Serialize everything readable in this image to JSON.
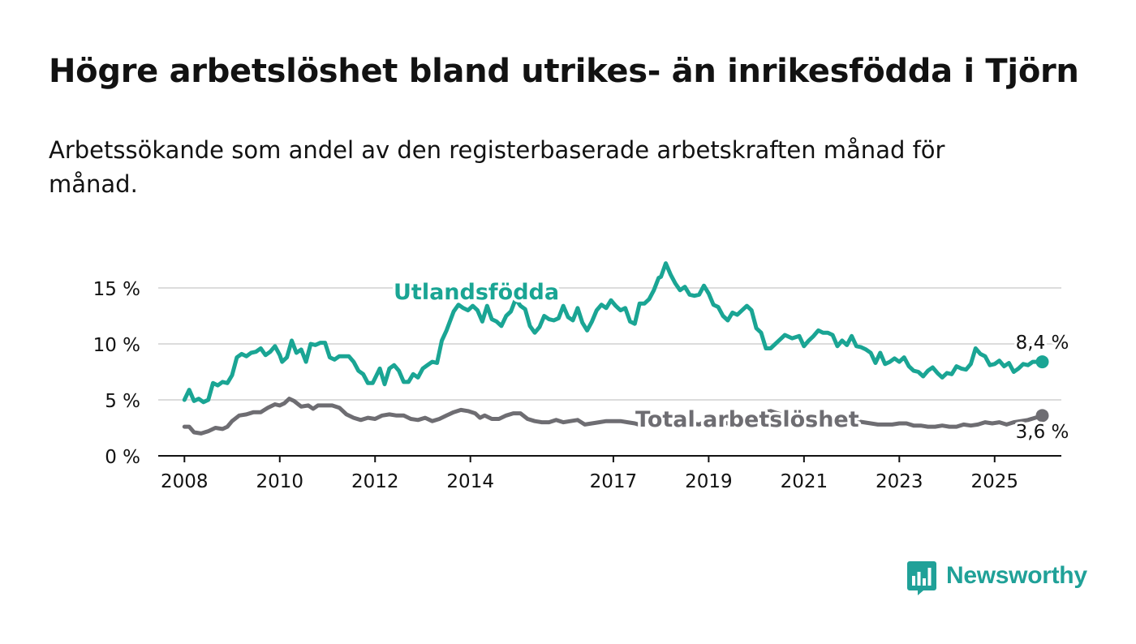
{
  "title": "Högre arbetslöshet bland utrikes- än inrikesfödda i Tjörn",
  "subtitle": "Arbetssökande som andel av den registerbaserade arbetskraften månad för månad.",
  "brand": {
    "name": "Newsworthy",
    "color": "#20a198",
    "icon": "newsworthy-logo-icon"
  },
  "colors": {
    "foreign": "#1aa594",
    "total": "#6e6d72",
    "grid": "#dcdcdc",
    "axis": "#121212"
  },
  "chart_data": {
    "type": "line",
    "y_ticks": [
      "0 %",
      "5 %",
      "10 %",
      "15 %"
    ],
    "x_ticks": [
      "2008",
      "2010",
      "2012",
      "2014",
      "2017",
      "2019",
      "2021",
      "2023",
      "2025"
    ],
    "x_tick_values": [
      2008,
      2010,
      2012,
      2014,
      2017,
      2019,
      2021,
      2023,
      2025
    ],
    "xlim": [
      2007.45,
      2026.4
    ],
    "ylim": [
      0,
      15
    ],
    "grid": "horizontal",
    "series": [
      {
        "name": "Utlandsfödda",
        "end_label": "8,4 %",
        "points": [
          [
            2008.0,
            5.0
          ],
          [
            2008.1,
            5.9
          ],
          [
            2008.2,
            4.9
          ],
          [
            2008.3,
            5.1
          ],
          [
            2008.4,
            4.8
          ],
          [
            2008.5,
            5.0
          ],
          [
            2008.6,
            6.5
          ],
          [
            2008.7,
            6.3
          ],
          [
            2008.8,
            6.6
          ],
          [
            2008.9,
            6.5
          ],
          [
            2009.0,
            7.2
          ],
          [
            2009.1,
            8.8
          ],
          [
            2009.2,
            9.1
          ],
          [
            2009.3,
            8.9
          ],
          [
            2009.4,
            9.2
          ],
          [
            2009.5,
            9.3
          ],
          [
            2009.6,
            9.6
          ],
          [
            2009.7,
            9.0
          ],
          [
            2009.8,
            9.3
          ],
          [
            2009.9,
            9.8
          ],
          [
            2010.0,
            9.0
          ],
          [
            2010.05,
            8.4
          ],
          [
            2010.15,
            8.8
          ],
          [
            2010.25,
            10.3
          ],
          [
            2010.35,
            9.2
          ],
          [
            2010.45,
            9.5
          ],
          [
            2010.55,
            8.4
          ],
          [
            2010.65,
            10.0
          ],
          [
            2010.75,
            9.9
          ],
          [
            2010.85,
            10.1
          ],
          [
            2010.95,
            10.1
          ],
          [
            2011.05,
            8.8
          ],
          [
            2011.15,
            8.6
          ],
          [
            2011.25,
            8.9
          ],
          [
            2011.45,
            8.9
          ],
          [
            2011.55,
            8.4
          ],
          [
            2011.65,
            7.6
          ],
          [
            2011.75,
            7.3
          ],
          [
            2011.85,
            6.5
          ],
          [
            2011.95,
            6.5
          ],
          [
            2012.1,
            7.8
          ],
          [
            2012.2,
            6.4
          ],
          [
            2012.3,
            7.8
          ],
          [
            2012.4,
            8.1
          ],
          [
            2012.5,
            7.6
          ],
          [
            2012.6,
            6.6
          ],
          [
            2012.7,
            6.6
          ],
          [
            2012.8,
            7.3
          ],
          [
            2012.9,
            7.0
          ],
          [
            2013.0,
            7.8
          ],
          [
            2013.1,
            8.1
          ],
          [
            2013.2,
            8.4
          ],
          [
            2013.3,
            8.3
          ],
          [
            2013.4,
            10.3
          ],
          [
            2013.5,
            11.2
          ],
          [
            2013.65,
            12.9
          ],
          [
            2013.75,
            13.5
          ],
          [
            2013.85,
            13.2
          ],
          [
            2013.95,
            13.0
          ],
          [
            2014.05,
            13.4
          ],
          [
            2014.15,
            13.0
          ],
          [
            2014.25,
            12.0
          ],
          [
            2014.35,
            13.4
          ],
          [
            2014.45,
            12.2
          ],
          [
            2014.55,
            12.0
          ],
          [
            2014.65,
            11.6
          ],
          [
            2014.75,
            12.5
          ],
          [
            2014.85,
            12.9
          ],
          [
            2014.95,
            14.0
          ],
          [
            2015.05,
            13.4
          ],
          [
            2015.15,
            13.1
          ],
          [
            2015.25,
            11.6
          ],
          [
            2015.35,
            11.0
          ],
          [
            2015.45,
            11.5
          ],
          [
            2015.55,
            12.5
          ],
          [
            2015.65,
            12.2
          ],
          [
            2015.75,
            12.1
          ],
          [
            2015.85,
            12.3
          ],
          [
            2015.95,
            13.4
          ],
          [
            2016.05,
            12.4
          ],
          [
            2016.15,
            12.1
          ],
          [
            2016.25,
            13.2
          ],
          [
            2016.35,
            11.9
          ],
          [
            2016.45,
            11.2
          ],
          [
            2016.55,
            12.0
          ],
          [
            2016.65,
            13.0
          ],
          [
            2016.75,
            13.5
          ],
          [
            2016.85,
            13.2
          ],
          [
            2016.95,
            13.9
          ],
          [
            2017.05,
            13.4
          ],
          [
            2017.15,
            13.0
          ],
          [
            2017.25,
            13.2
          ],
          [
            2017.35,
            12.0
          ],
          [
            2017.45,
            11.8
          ],
          [
            2017.55,
            13.6
          ],
          [
            2017.65,
            13.6
          ],
          [
            2017.75,
            14.0
          ],
          [
            2017.85,
            14.8
          ],
          [
            2017.95,
            15.9
          ],
          [
            2018.0,
            16.0
          ],
          [
            2018.1,
            17.2
          ],
          [
            2018.2,
            16.2
          ],
          [
            2018.3,
            15.4
          ],
          [
            2018.4,
            14.8
          ],
          [
            2018.5,
            15.1
          ],
          [
            2018.6,
            14.4
          ],
          [
            2018.7,
            14.3
          ],
          [
            2018.8,
            14.4
          ],
          [
            2018.9,
            15.2
          ],
          [
            2019.0,
            14.5
          ],
          [
            2019.1,
            13.5
          ],
          [
            2019.2,
            13.3
          ],
          [
            2019.3,
            12.5
          ],
          [
            2019.4,
            12.1
          ],
          [
            2019.5,
            12.8
          ],
          [
            2019.6,
            12.6
          ],
          [
            2019.7,
            13.0
          ],
          [
            2019.8,
            13.4
          ],
          [
            2019.9,
            13.0
          ],
          [
            2020.0,
            11.4
          ],
          [
            2020.1,
            11.0
          ],
          [
            2020.2,
            9.6
          ],
          [
            2020.3,
            9.6
          ],
          [
            2020.45,
            10.2
          ],
          [
            2020.6,
            10.8
          ],
          [
            2020.75,
            10.5
          ],
          [
            2020.9,
            10.7
          ],
          [
            2021.0,
            9.8
          ],
          [
            2021.1,
            10.3
          ],
          [
            2021.2,
            10.7
          ],
          [
            2021.3,
            11.2
          ],
          [
            2021.4,
            11.0
          ],
          [
            2021.5,
            11.0
          ],
          [
            2021.6,
            10.8
          ],
          [
            2021.7,
            9.8
          ],
          [
            2021.8,
            10.3
          ],
          [
            2021.9,
            9.9
          ],
          [
            2022.0,
            10.7
          ],
          [
            2022.1,
            9.8
          ],
          [
            2022.2,
            9.7
          ],
          [
            2022.3,
            9.5
          ],
          [
            2022.4,
            9.2
          ],
          [
            2022.5,
            8.3
          ],
          [
            2022.6,
            9.2
          ],
          [
            2022.7,
            8.2
          ],
          [
            2022.8,
            8.4
          ],
          [
            2022.9,
            8.7
          ],
          [
            2023.0,
            8.4
          ],
          [
            2023.1,
            8.8
          ],
          [
            2023.2,
            8.0
          ],
          [
            2023.3,
            7.6
          ],
          [
            2023.4,
            7.5
          ],
          [
            2023.5,
            7.1
          ],
          [
            2023.6,
            7.6
          ],
          [
            2023.7,
            7.9
          ],
          [
            2023.8,
            7.4
          ],
          [
            2023.9,
            7.0
          ],
          [
            2024.0,
            7.4
          ],
          [
            2024.1,
            7.3
          ],
          [
            2024.2,
            8.0
          ],
          [
            2024.3,
            7.8
          ],
          [
            2024.4,
            7.7
          ],
          [
            2024.5,
            8.2
          ],
          [
            2024.6,
            9.6
          ],
          [
            2024.7,
            9.1
          ],
          [
            2024.8,
            8.9
          ],
          [
            2024.9,
            8.1
          ],
          [
            2025.0,
            8.2
          ],
          [
            2025.1,
            8.5
          ],
          [
            2025.2,
            8.0
          ],
          [
            2025.3,
            8.3
          ],
          [
            2025.4,
            7.5
          ],
          [
            2025.5,
            7.8
          ],
          [
            2025.6,
            8.2
          ],
          [
            2025.7,
            8.1
          ],
          [
            2025.8,
            8.4
          ],
          [
            2026.0,
            8.4
          ]
        ]
      },
      {
        "name": "Total arbetslöshet",
        "end_label": "3,6 %",
        "points": [
          [
            2008.0,
            2.6
          ],
          [
            2008.1,
            2.6
          ],
          [
            2008.2,
            2.1
          ],
          [
            2008.35,
            2.0
          ],
          [
            2008.5,
            2.2
          ],
          [
            2008.65,
            2.5
          ],
          [
            2008.8,
            2.4
          ],
          [
            2008.9,
            2.6
          ],
          [
            2009.0,
            3.1
          ],
          [
            2009.15,
            3.6
          ],
          [
            2009.3,
            3.7
          ],
          [
            2009.45,
            3.9
          ],
          [
            2009.6,
            3.9
          ],
          [
            2009.75,
            4.3
          ],
          [
            2009.9,
            4.6
          ],
          [
            2010.0,
            4.5
          ],
          [
            2010.1,
            4.7
          ],
          [
            2010.2,
            5.1
          ],
          [
            2010.3,
            4.9
          ],
          [
            2010.45,
            4.4
          ],
          [
            2010.6,
            4.5
          ],
          [
            2010.7,
            4.2
          ],
          [
            2010.8,
            4.5
          ],
          [
            2010.95,
            4.5
          ],
          [
            2011.1,
            4.5
          ],
          [
            2011.25,
            4.3
          ],
          [
            2011.4,
            3.7
          ],
          [
            2011.55,
            3.4
          ],
          [
            2011.7,
            3.2
          ],
          [
            2011.85,
            3.4
          ],
          [
            2012.0,
            3.3
          ],
          [
            2012.15,
            3.6
          ],
          [
            2012.3,
            3.7
          ],
          [
            2012.45,
            3.6
          ],
          [
            2012.6,
            3.6
          ],
          [
            2012.75,
            3.3
          ],
          [
            2012.9,
            3.2
          ],
          [
            2013.05,
            3.4
          ],
          [
            2013.2,
            3.1
          ],
          [
            2013.35,
            3.3
          ],
          [
            2013.5,
            3.6
          ],
          [
            2013.65,
            3.9
          ],
          [
            2013.8,
            4.1
          ],
          [
            2013.95,
            4.0
          ],
          [
            2014.1,
            3.8
          ],
          [
            2014.2,
            3.4
          ],
          [
            2014.3,
            3.6
          ],
          [
            2014.45,
            3.3
          ],
          [
            2014.6,
            3.3
          ],
          [
            2014.75,
            3.6
          ],
          [
            2014.9,
            3.8
          ],
          [
            2015.05,
            3.8
          ],
          [
            2015.2,
            3.3
          ],
          [
            2015.35,
            3.1
          ],
          [
            2015.5,
            3.0
          ],
          [
            2015.65,
            3.0
          ],
          [
            2015.8,
            3.2
          ],
          [
            2015.95,
            3.0
          ],
          [
            2016.1,
            3.1
          ],
          [
            2016.25,
            3.2
          ],
          [
            2016.4,
            2.8
          ],
          [
            2016.55,
            2.9
          ],
          [
            2016.7,
            3.0
          ],
          [
            2016.85,
            3.1
          ],
          [
            2017.0,
            3.1
          ],
          [
            2017.15,
            3.1
          ],
          [
            2017.3,
            3.0
          ],
          [
            2017.45,
            2.9
          ],
          [
            2017.6,
            2.7
          ],
          [
            2017.75,
            2.8
          ],
          [
            2017.9,
            3.0
          ],
          [
            2018.05,
            3.3
          ],
          [
            2018.2,
            3.4
          ],
          [
            2018.35,
            3.2
          ],
          [
            2018.5,
            3.0
          ],
          [
            2018.65,
            2.9
          ],
          [
            2018.8,
            2.8
          ],
          [
            2018.95,
            3.1
          ],
          [
            2019.1,
            3.2
          ],
          [
            2019.25,
            3.0
          ],
          [
            2019.4,
            2.9
          ],
          [
            2019.55,
            2.9
          ],
          [
            2019.7,
            3.2
          ],
          [
            2019.85,
            3.3
          ],
          [
            2020.0,
            3.5
          ],
          [
            2020.15,
            3.9
          ],
          [
            2020.3,
            4.0
          ],
          [
            2020.45,
            3.8
          ],
          [
            2020.6,
            3.6
          ],
          [
            2020.75,
            3.5
          ],
          [
            2020.9,
            3.4
          ],
          [
            2021.05,
            3.3
          ],
          [
            2021.2,
            3.5
          ],
          [
            2021.35,
            3.6
          ],
          [
            2021.5,
            3.5
          ],
          [
            2021.65,
            3.2
          ],
          [
            2021.8,
            3.0
          ],
          [
            2021.95,
            3.1
          ],
          [
            2022.1,
            3.1
          ],
          [
            2022.25,
            3.0
          ],
          [
            2022.4,
            2.9
          ],
          [
            2022.55,
            2.8
          ],
          [
            2022.7,
            2.8
          ],
          [
            2022.85,
            2.8
          ],
          [
            2023.0,
            2.9
          ],
          [
            2023.15,
            2.9
          ],
          [
            2023.3,
            2.7
          ],
          [
            2023.45,
            2.7
          ],
          [
            2023.6,
            2.6
          ],
          [
            2023.75,
            2.6
          ],
          [
            2023.9,
            2.7
          ],
          [
            2024.05,
            2.6
          ],
          [
            2024.2,
            2.6
          ],
          [
            2024.35,
            2.8
          ],
          [
            2024.5,
            2.7
          ],
          [
            2024.65,
            2.8
          ],
          [
            2024.8,
            3.0
          ],
          [
            2024.95,
            2.9
          ],
          [
            2025.1,
            3.0
          ],
          [
            2025.25,
            2.8
          ],
          [
            2025.4,
            3.0
          ],
          [
            2025.55,
            3.1
          ],
          [
            2025.7,
            3.2
          ],
          [
            2025.85,
            3.4
          ],
          [
            2026.0,
            3.6
          ]
        ]
      }
    ],
    "annotations": [
      {
        "text": "Utlandsfödda",
        "series": "Utlandsfödda"
      },
      {
        "text": "Total arbetslöshet",
        "series": "Total arbetslöshet"
      }
    ]
  }
}
